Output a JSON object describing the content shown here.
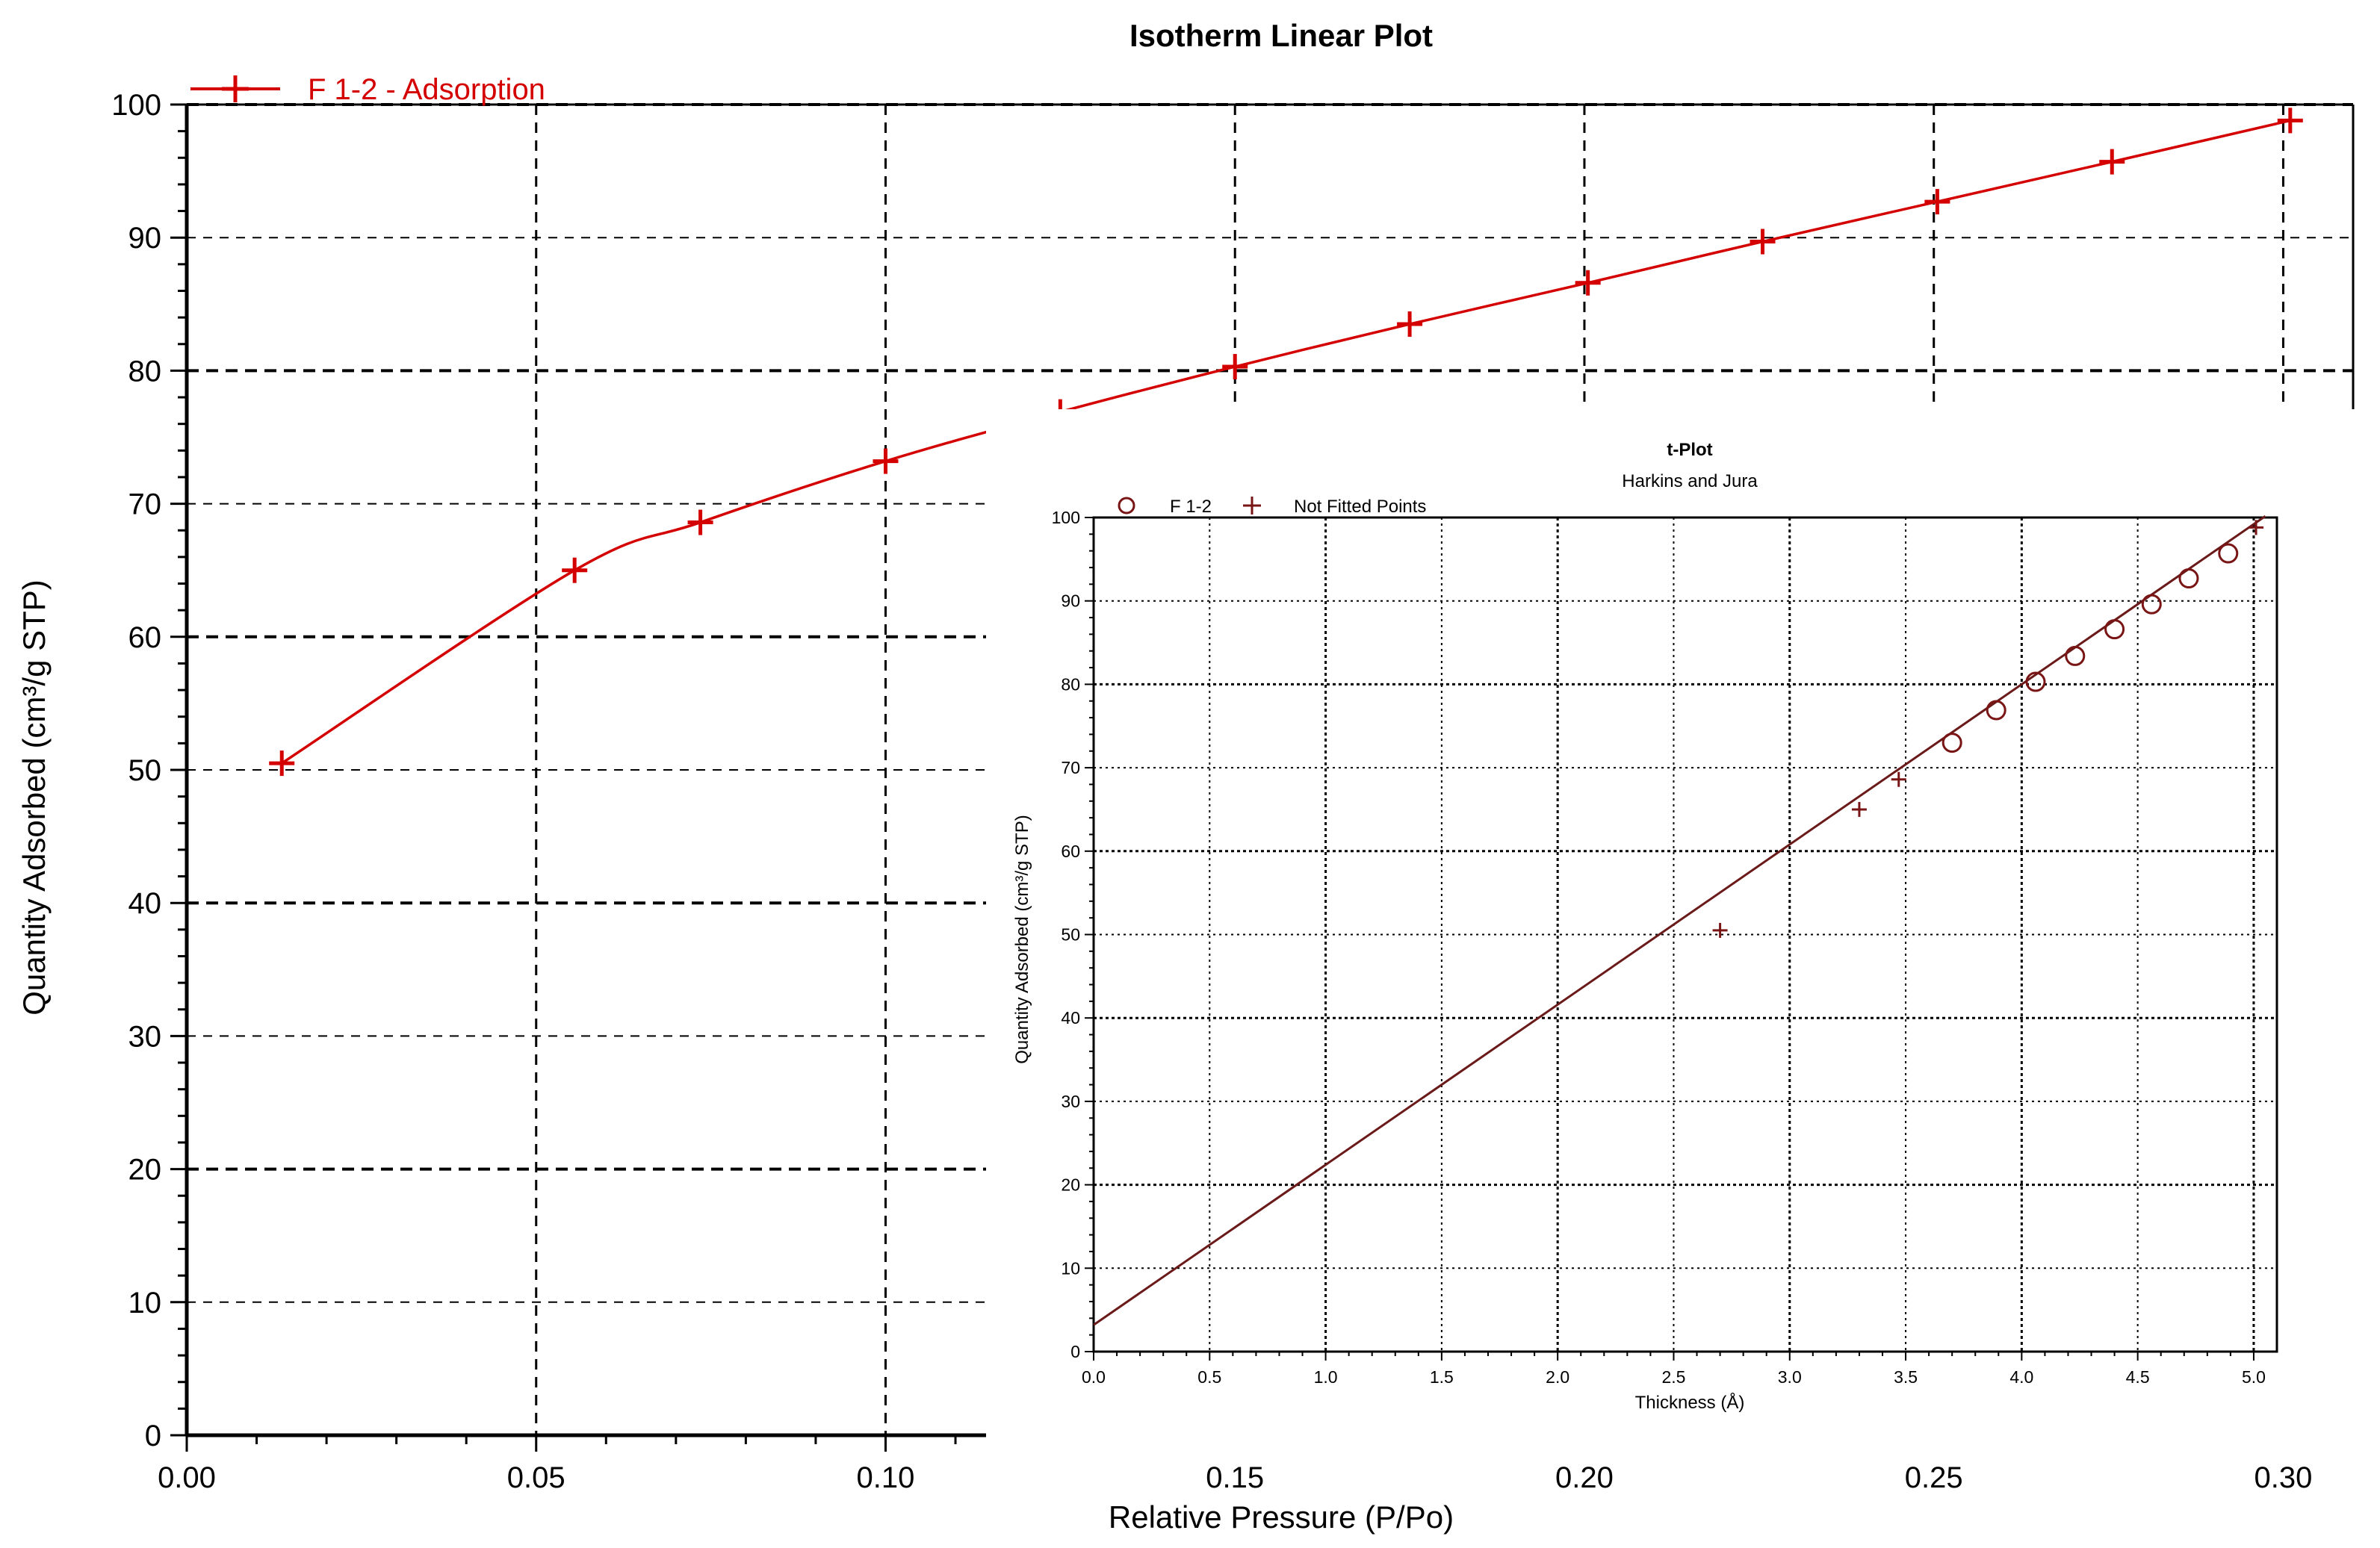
{
  "chart_data": [
    {
      "type": "line",
      "title": "Isotherm Linear Plot",
      "xlabel": "Relative Pressure (P/Po)",
      "ylabel": "Quantity Adsorbed (cm³/g STP)",
      "xlim": [
        0,
        0.31
      ],
      "ylim": [
        0,
        100
      ],
      "xticks": [
        0.0,
        0.05,
        0.1,
        0.15,
        0.2,
        0.25,
        0.3
      ],
      "xtick_labels": [
        "0.00",
        "0.05",
        "0.10",
        "0.15",
        "0.20",
        "0.25",
        "0.30"
      ],
      "yticks": [
        0,
        10,
        20,
        30,
        40,
        50,
        60,
        70,
        80,
        90,
        100
      ],
      "ytick_labels": [
        "0",
        "10",
        "20",
        "30",
        "40",
        "50",
        "60",
        "70",
        "80",
        "90",
        "100"
      ],
      "grid": true,
      "legend_position": "top-left",
      "series": [
        {
          "name": "F 1-2 - Adsorption",
          "color": "#d40000",
          "marker": "plus",
          "x": [
            0.0136,
            0.0555,
            0.0735,
            0.1,
            0.125,
            0.15,
            0.175,
            0.2005,
            0.2255,
            0.2505,
            0.2755,
            0.301
          ],
          "y": [
            50.5,
            65.0,
            68.6,
            73.2,
            76.9,
            80.3,
            83.5,
            86.6,
            89.7,
            92.7,
            95.7,
            98.8
          ]
        }
      ]
    },
    {
      "type": "scatter",
      "title": "t-Plot",
      "subtitle": "Harkins and Jura",
      "xlabel": "Thickness (Å)",
      "ylabel": "Quantity Adsorbed (cm³/g STP)",
      "xlim": [
        0,
        5.1
      ],
      "ylim": [
        0,
        100
      ],
      "xticks": [
        0,
        0.5,
        1.0,
        1.5,
        2.0,
        2.5,
        3.0,
        3.5,
        4.0,
        4.5,
        5.0
      ],
      "xtick_labels": [
        "0.0",
        "0.5",
        "1.0",
        "1.5",
        "2.0",
        "2.5",
        "3.0",
        "3.5",
        "4.0",
        "4.5",
        "5.0"
      ],
      "yticks": [
        0,
        10,
        20,
        30,
        40,
        50,
        60,
        70,
        80,
        90,
        100
      ],
      "ytick_labels": [
        "0",
        "10",
        "20",
        "30",
        "40",
        "50",
        "60",
        "70",
        "80",
        "90",
        "100"
      ],
      "grid": true,
      "legend_position": "top-left",
      "series": [
        {
          "name": "F 1-2",
          "color": "#7a1515",
          "marker": "circle",
          "x": [
            3.7,
            3.89,
            4.06,
            4.23,
            4.4,
            4.56,
            4.72,
            4.89
          ],
          "y": [
            73.0,
            76.9,
            80.3,
            83.4,
            86.6,
            89.6,
            92.7,
            95.7
          ]
        },
        {
          "name": "Not Fitted Points",
          "color": "#7a1515",
          "marker": "plus",
          "x": [
            2.7,
            3.3,
            3.47,
            5.01
          ],
          "y": [
            50.5,
            65.0,
            68.6,
            98.8
          ]
        }
      ],
      "fit_line": {
        "color": "#6b1a1a",
        "slope": 19.2,
        "intercept": 3.2,
        "x_range": [
          0,
          5.05
        ]
      }
    }
  ]
}
